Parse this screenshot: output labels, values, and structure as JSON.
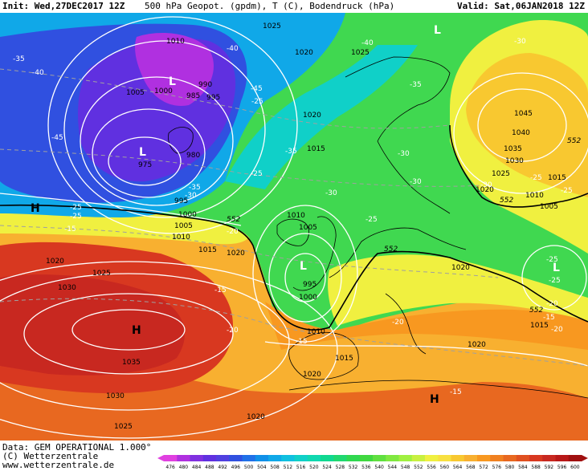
{
  "header": {
    "init_label": "Init: Wed,27DEC2017 12Z",
    "params": "500 hPa Geopot. (gpdm), T (C), Bodendruck (hPa)",
    "valid_label": "Valid: Sat,06JAN2018 12Z"
  },
  "footer": {
    "data_source": "Data: GEM OPERATIONAL 1.000°",
    "copyright": "(C) Wetterzentrale",
    "website": "www.wetterzentrale.de"
  },
  "legend": {
    "values": [
      "476",
      "480",
      "484",
      "488",
      "492",
      "496",
      "500",
      "504",
      "508",
      "512",
      "516",
      "520",
      "524",
      "528",
      "532",
      "536",
      "540",
      "544",
      "548",
      "552",
      "556",
      "560",
      "564",
      "568",
      "572",
      "576",
      "580",
      "584",
      "588",
      "592",
      "596",
      "600"
    ],
    "colors": [
      "#e040e0",
      "#b030e0",
      "#8030e0",
      "#6030e0",
      "#5040e0",
      "#3050e0",
      "#2070e8",
      "#1090e8",
      "#10a8e8",
      "#10c0e0",
      "#10d0c8",
      "#10d8b0",
      "#10d890",
      "#20d870",
      "#30d850",
      "#40d840",
      "#60e040",
      "#80e840",
      "#a0f040",
      "#c8f040",
      "#f0f040",
      "#f8e040",
      "#f8c830",
      "#f8b030",
      "#f89820",
      "#f08020",
      "#e86820",
      "#e05020",
      "#d83820",
      "#c82820",
      "#b81818",
      "#a01010"
    ]
  },
  "map": {
    "pressure_labels": [
      "1010",
      "1025",
      "1020",
      "1025",
      "1005",
      "1000",
      "995",
      "990",
      "985",
      "980",
      "975",
      "1020",
      "1015",
      "995",
      "1000",
      "1005",
      "1010",
      "1015",
      "1020",
      "1020",
      "1025",
      "1030",
      "1035",
      "1030",
      "1025",
      "1010",
      "1005",
      "1000",
      "995",
      "1010",
      "1015",
      "1020",
      "1020",
      "1020",
      "1045",
      "1040",
      "1035",
      "1030",
      "1025",
      "1020",
      "1015",
      "1010",
      "1005",
      "1020",
      "1015"
    ],
    "temp_labels": [
      "-35",
      "-40",
      "-40",
      "-40",
      "-45",
      "-45",
      "-30",
      "-35",
      "-35",
      "-25",
      "-30",
      "-35",
      "-30",
      "-25",
      "-30",
      "-25",
      "-20",
      "-15",
      "-25",
      "-30",
      "-25",
      "-20",
      "-15",
      "-20",
      "-15",
      "-25",
      "-25",
      "-25",
      "-15",
      "-25",
      "-15",
      "-20",
      "-30",
      "-20"
    ],
    "contour_552_label": "552",
    "high_marker": "H",
    "low_marker": "L"
  }
}
